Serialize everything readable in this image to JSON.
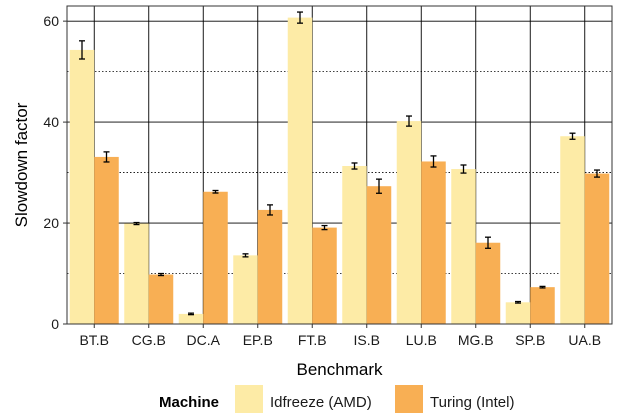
{
  "chart_data": {
    "type": "bar",
    "xlabel": "Benchmark",
    "ylabel": "Slowdown factor",
    "ylim": [
      0,
      63
    ],
    "yticks": [
      0,
      20,
      40,
      60
    ],
    "grid": true,
    "legend_position": "bottom",
    "legend_title": "Machine",
    "categories": [
      "BT.B",
      "CG.B",
      "DC.A",
      "EP.B",
      "FT.B",
      "IS.B",
      "LU.B",
      "MG.B",
      "SP.B",
      "UA.B"
    ],
    "series": [
      {
        "name": "Idfreeze (AMD)",
        "color": "#FDEBA6",
        "values": [
          54.3,
          19.9,
          2.0,
          13.6,
          60.7,
          31.3,
          40.2,
          30.7,
          4.3,
          37.2
        ],
        "errors": [
          1.8,
          0.2,
          0.15,
          0.3,
          1.1,
          0.6,
          1.0,
          0.8,
          0.15,
          0.6
        ]
      },
      {
        "name": "Turing (Intel)",
        "color": "#F8AF54",
        "values": [
          33.1,
          9.8,
          26.2,
          22.6,
          19.1,
          27.3,
          32.2,
          16.1,
          7.3,
          29.8
        ],
        "errors": [
          1.0,
          0.2,
          0.25,
          1.0,
          0.4,
          1.4,
          1.1,
          1.1,
          0.15,
          0.7
        ]
      }
    ]
  }
}
